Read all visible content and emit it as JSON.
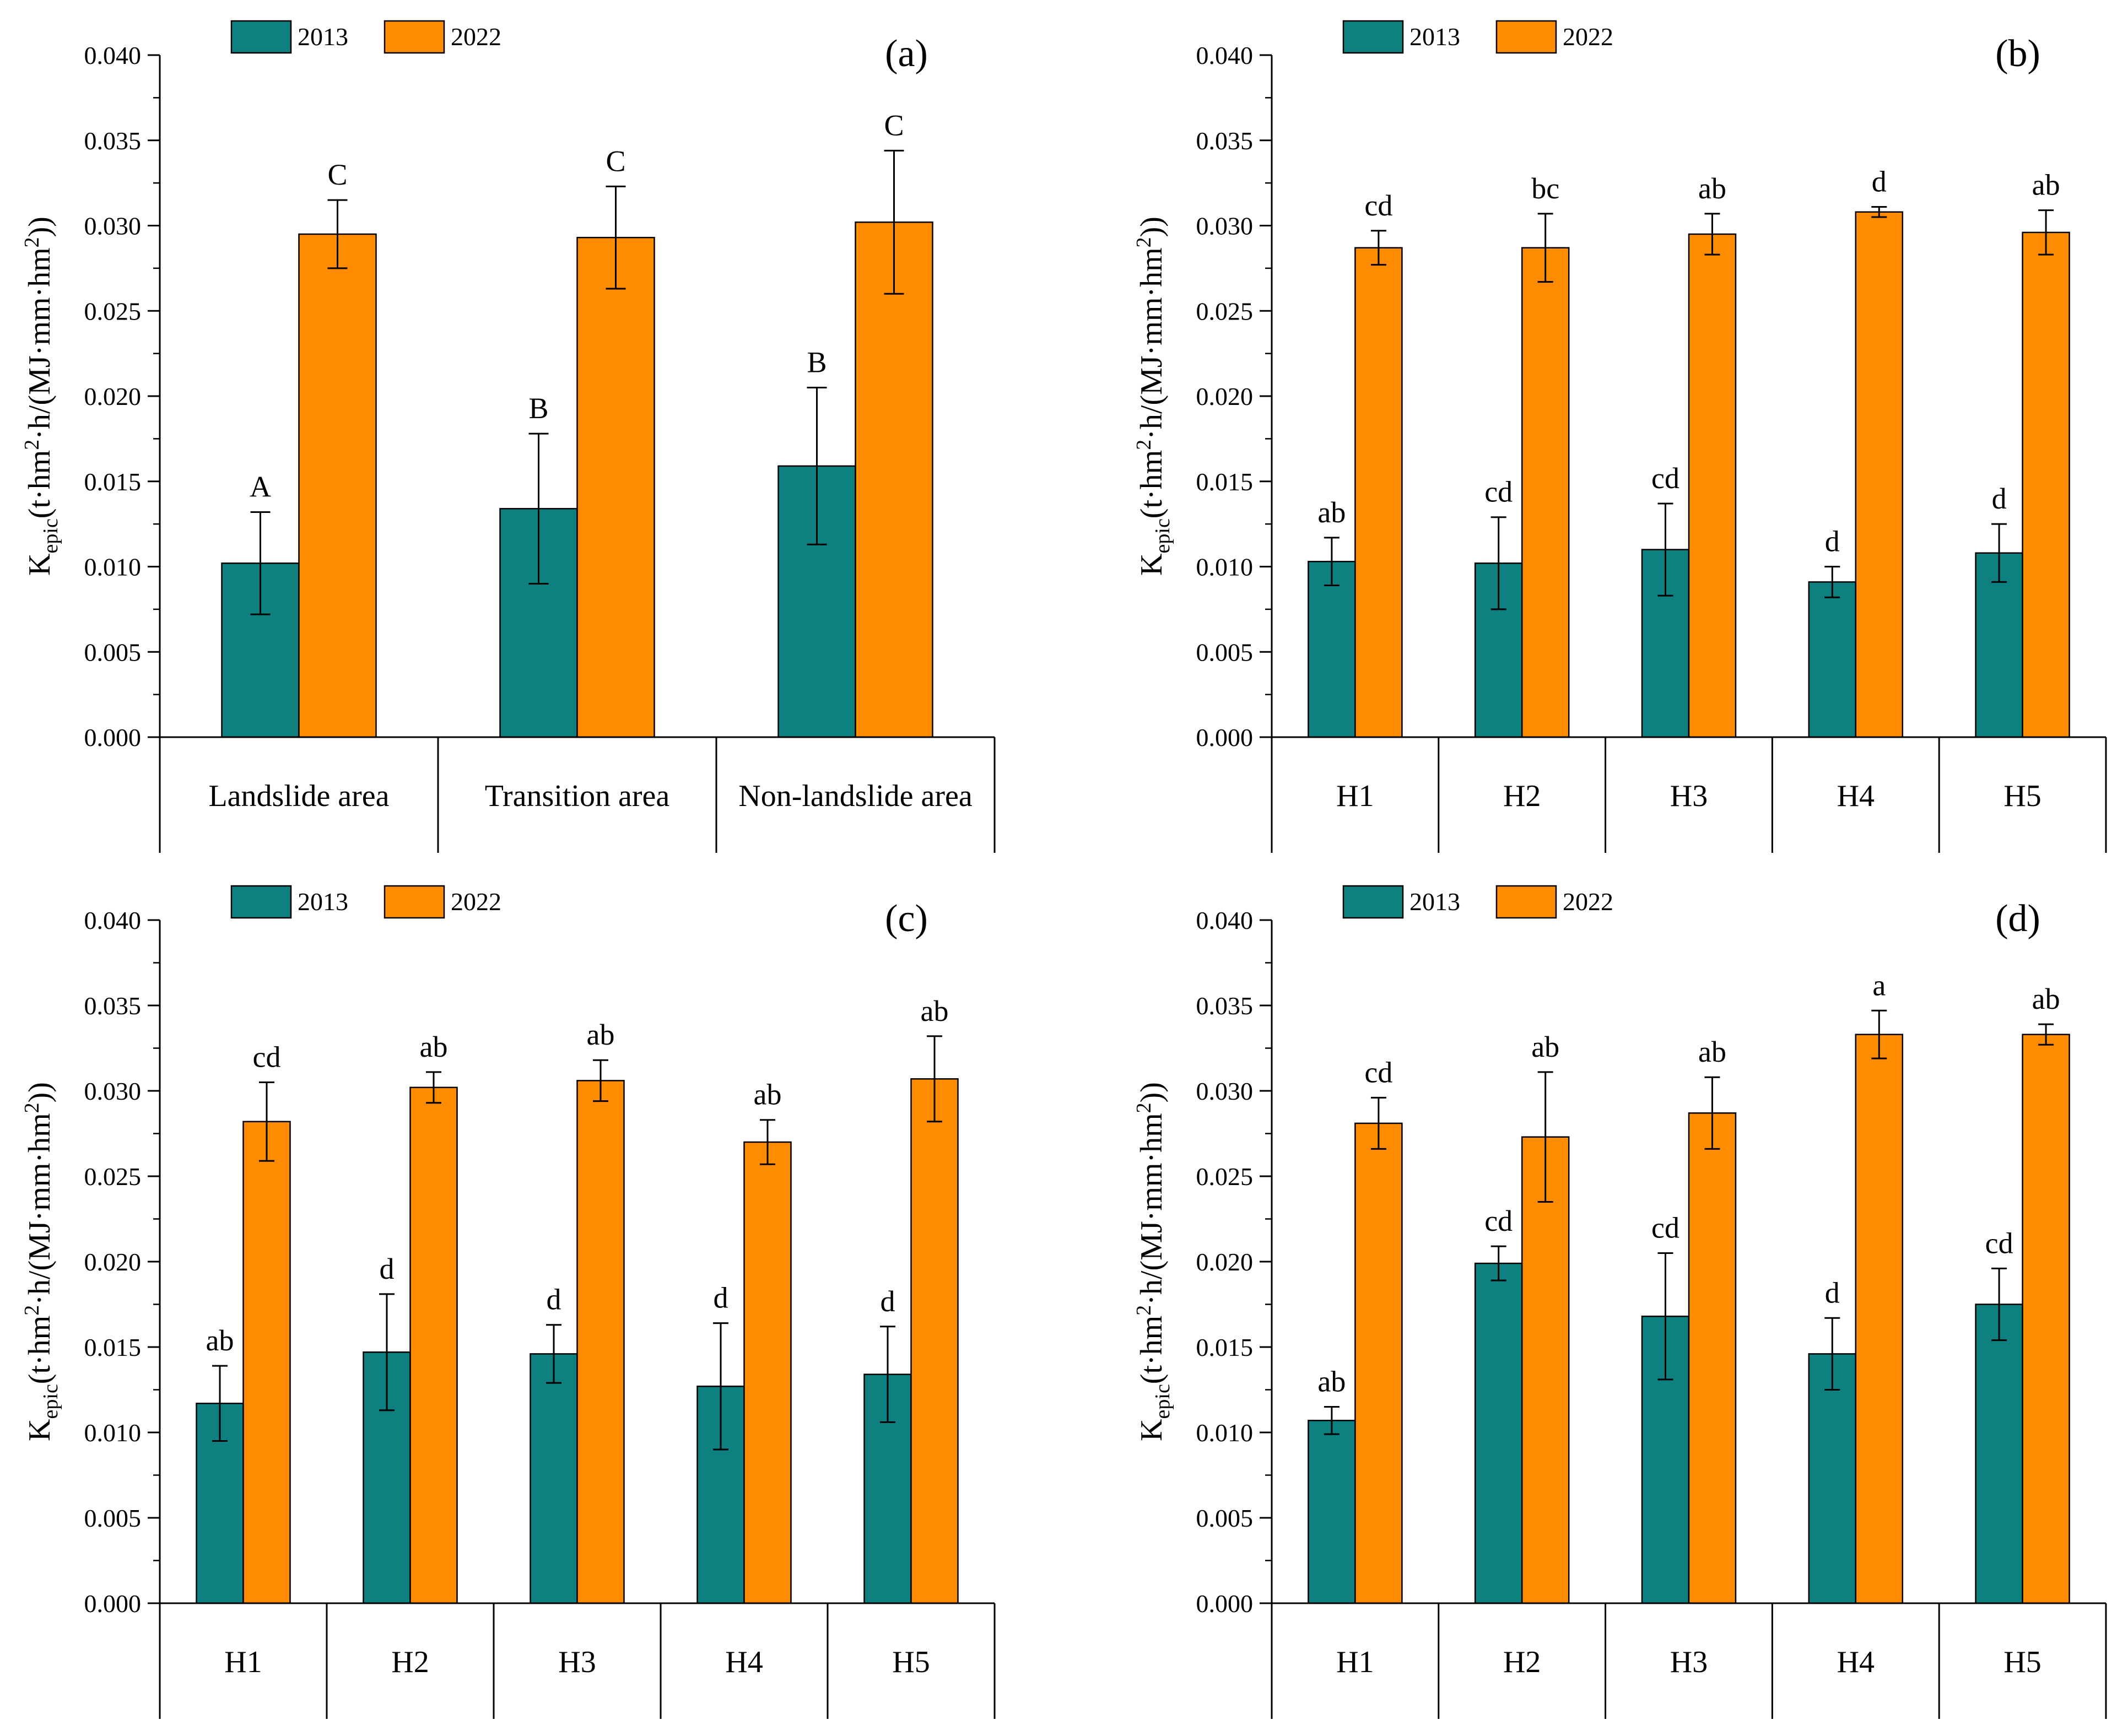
{
  "colors": {
    "series_2013": "#0e8080",
    "series_2022": "#ff8c00",
    "axis": "#000000"
  },
  "chart_data": [
    {
      "type": "bar",
      "panel_label": "(a)",
      "ylabel_main": "K",
      "ylabel_sub": "epic",
      "ylabel_rest": "(t·hm",
      "ylabel_sup1": "2",
      "ylabel_mid": "·h/(MJ·mm·hm",
      "ylabel_sup2": "2",
      "ylabel_end": "))",
      "ylim": [
        0,
        0.04
      ],
      "yticks": [
        "0.000",
        "0.005",
        "0.010",
        "0.015",
        "0.020",
        "0.025",
        "0.030",
        "0.035",
        "0.040"
      ],
      "categories": [
        "Landslide area",
        "Transition area",
        "Non-landslide area"
      ],
      "series": [
        {
          "name": "2013",
          "values": [
            0.0102,
            0.0134,
            0.0159
          ],
          "errors": [
            0.003,
            0.0044,
            0.0046
          ],
          "labels": [
            "A",
            "B",
            "B"
          ]
        },
        {
          "name": "2022",
          "values": [
            0.0295,
            0.0293,
            0.0302
          ],
          "errors": [
            0.002,
            0.003,
            0.0042
          ],
          "labels": [
            "C",
            "C",
            "C"
          ]
        }
      ]
    },
    {
      "type": "bar",
      "panel_label": "(b)",
      "ylabel_main": "K",
      "ylabel_sub": "epic",
      "ylabel_rest": "(t·hm",
      "ylabel_sup1": "2",
      "ylabel_mid": "·h/(MJ·mm·hm",
      "ylabel_sup2": "2",
      "ylabel_end": "))",
      "ylim": [
        0,
        0.04
      ],
      "yticks": [
        "0.000",
        "0.005",
        "0.010",
        "0.015",
        "0.020",
        "0.025",
        "0.030",
        "0.035",
        "0.040"
      ],
      "categories": [
        "H1",
        "H2",
        "H3",
        "H4",
        "H5"
      ],
      "series": [
        {
          "name": "2013",
          "values": [
            0.0103,
            0.0102,
            0.011,
            0.0091,
            0.0108
          ],
          "errors": [
            0.0014,
            0.0027,
            0.0027,
            0.0009,
            0.0017
          ],
          "labels": [
            "ab",
            "cd",
            "cd",
            "d",
            "d"
          ]
        },
        {
          "name": "2022",
          "values": [
            0.0287,
            0.0287,
            0.0295,
            0.0308,
            0.0296
          ],
          "errors": [
            0.001,
            0.002,
            0.0012,
            0.0003,
            0.0013
          ],
          "labels": [
            "cd",
            "bc",
            "ab",
            "d",
            "ab"
          ]
        }
      ]
    },
    {
      "type": "bar",
      "panel_label": "(c)",
      "ylabel_main": "K",
      "ylabel_sub": "epic",
      "ylabel_rest": "(t·hm",
      "ylabel_sup1": "2",
      "ylabel_mid": "·h/(MJ·mm·hm",
      "ylabel_sup2": "2",
      "ylabel_end": "))",
      "ylim": [
        0,
        0.04
      ],
      "yticks": [
        "0.000",
        "0.005",
        "0.010",
        "0.015",
        "0.020",
        "0.025",
        "0.030",
        "0.035",
        "0.040"
      ],
      "categories": [
        "H1",
        "H2",
        "H3",
        "H4",
        "H5"
      ],
      "series": [
        {
          "name": "2013",
          "values": [
            0.0117,
            0.0147,
            0.0146,
            0.0127,
            0.0134
          ],
          "errors": [
            0.0022,
            0.0034,
            0.0017,
            0.0037,
            0.0028
          ],
          "labels": [
            "ab",
            "d",
            "d",
            "d",
            "d"
          ]
        },
        {
          "name": "2022",
          "values": [
            0.0282,
            0.0302,
            0.0306,
            0.027,
            0.0307
          ],
          "errors": [
            0.0023,
            0.0009,
            0.0012,
            0.0013,
            0.0025
          ],
          "labels": [
            "cd",
            "ab",
            "ab",
            "ab",
            "ab"
          ]
        }
      ]
    },
    {
      "type": "bar",
      "panel_label": "(d)",
      "ylabel_main": "K",
      "ylabel_sub": "epic",
      "ylabel_rest": "(t·hm",
      "ylabel_sup1": "2",
      "ylabel_mid": "·h/(MJ·mm·hm",
      "ylabel_sup2": "2",
      "ylabel_end": "))",
      "ylim": [
        0,
        0.04
      ],
      "yticks": [
        "0.000",
        "0.005",
        "0.010",
        "0.015",
        "0.020",
        "0.025",
        "0.030",
        "0.035",
        "0.040"
      ],
      "categories": [
        "H1",
        "H2",
        "H3",
        "H4",
        "H5"
      ],
      "series": [
        {
          "name": "2013",
          "values": [
            0.0107,
            0.0199,
            0.0168,
            0.0146,
            0.0175
          ],
          "errors": [
            0.0008,
            0.001,
            0.0037,
            0.0021,
            0.0021
          ],
          "labels": [
            "ab",
            "cd",
            "cd",
            "d",
            "cd"
          ]
        },
        {
          "name": "2022",
          "values": [
            0.0281,
            0.0273,
            0.0287,
            0.0333,
            0.0333
          ],
          "errors": [
            0.0015,
            0.0038,
            0.0021,
            0.0014,
            0.0006
          ],
          "labels": [
            "cd",
            "ab",
            "ab",
            "a",
            "ab"
          ]
        }
      ]
    }
  ]
}
